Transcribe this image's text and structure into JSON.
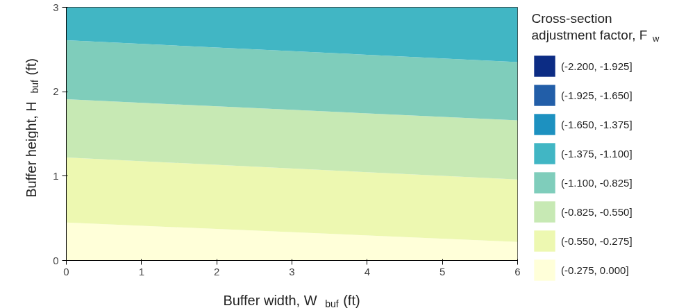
{
  "chart_data": {
    "type": "area",
    "stacked": true,
    "xlabel": "Buffer width,  W$_{buf}$ (ft)",
    "ylabel": "Buffer height,  H$_{buf}$ (ft)",
    "legend_title": "Cross-section adjustment factor, F$_{w}$",
    "legend": "right",
    "x": [
      0,
      6
    ],
    "xlim": [
      0,
      6
    ],
    "ylim": [
      0,
      3
    ],
    "xticks": [
      0,
      1,
      2,
      3,
      4,
      5,
      6
    ],
    "yticks": [
      0,
      1,
      2,
      3
    ],
    "series": [
      {
        "name": "(-0.275, 0.000]",
        "color": "#ffffd9",
        "values": [
          0.45,
          0.22
        ]
      },
      {
        "name": "(-0.550, -0.275]",
        "color": "#edf8b1",
        "values": [
          0.77,
          0.74
        ]
      },
      {
        "name": "(-0.825, -0.550]",
        "color": "#c7e9b4",
        "values": [
          0.69,
          0.7
        ]
      },
      {
        "name": "(-1.100, -0.825]",
        "color": "#7fcdbb",
        "values": [
          0.7,
          0.69
        ]
      },
      {
        "name": "(-1.375, -1.100]",
        "color": "#41b6c4",
        "values": [
          0.39,
          0.65
        ]
      },
      {
        "name": "(-1.650, -1.375]",
        "color": "#1d91c0",
        "values": [
          null,
          null
        ]
      },
      {
        "name": "(-1.925, -1.650]",
        "color": "#225ea8",
        "values": [
          null,
          null
        ]
      },
      {
        "name": "(-2.200, -1.925]",
        "color": "#0c2c84",
        "values": [
          null,
          null
        ]
      }
    ]
  }
}
